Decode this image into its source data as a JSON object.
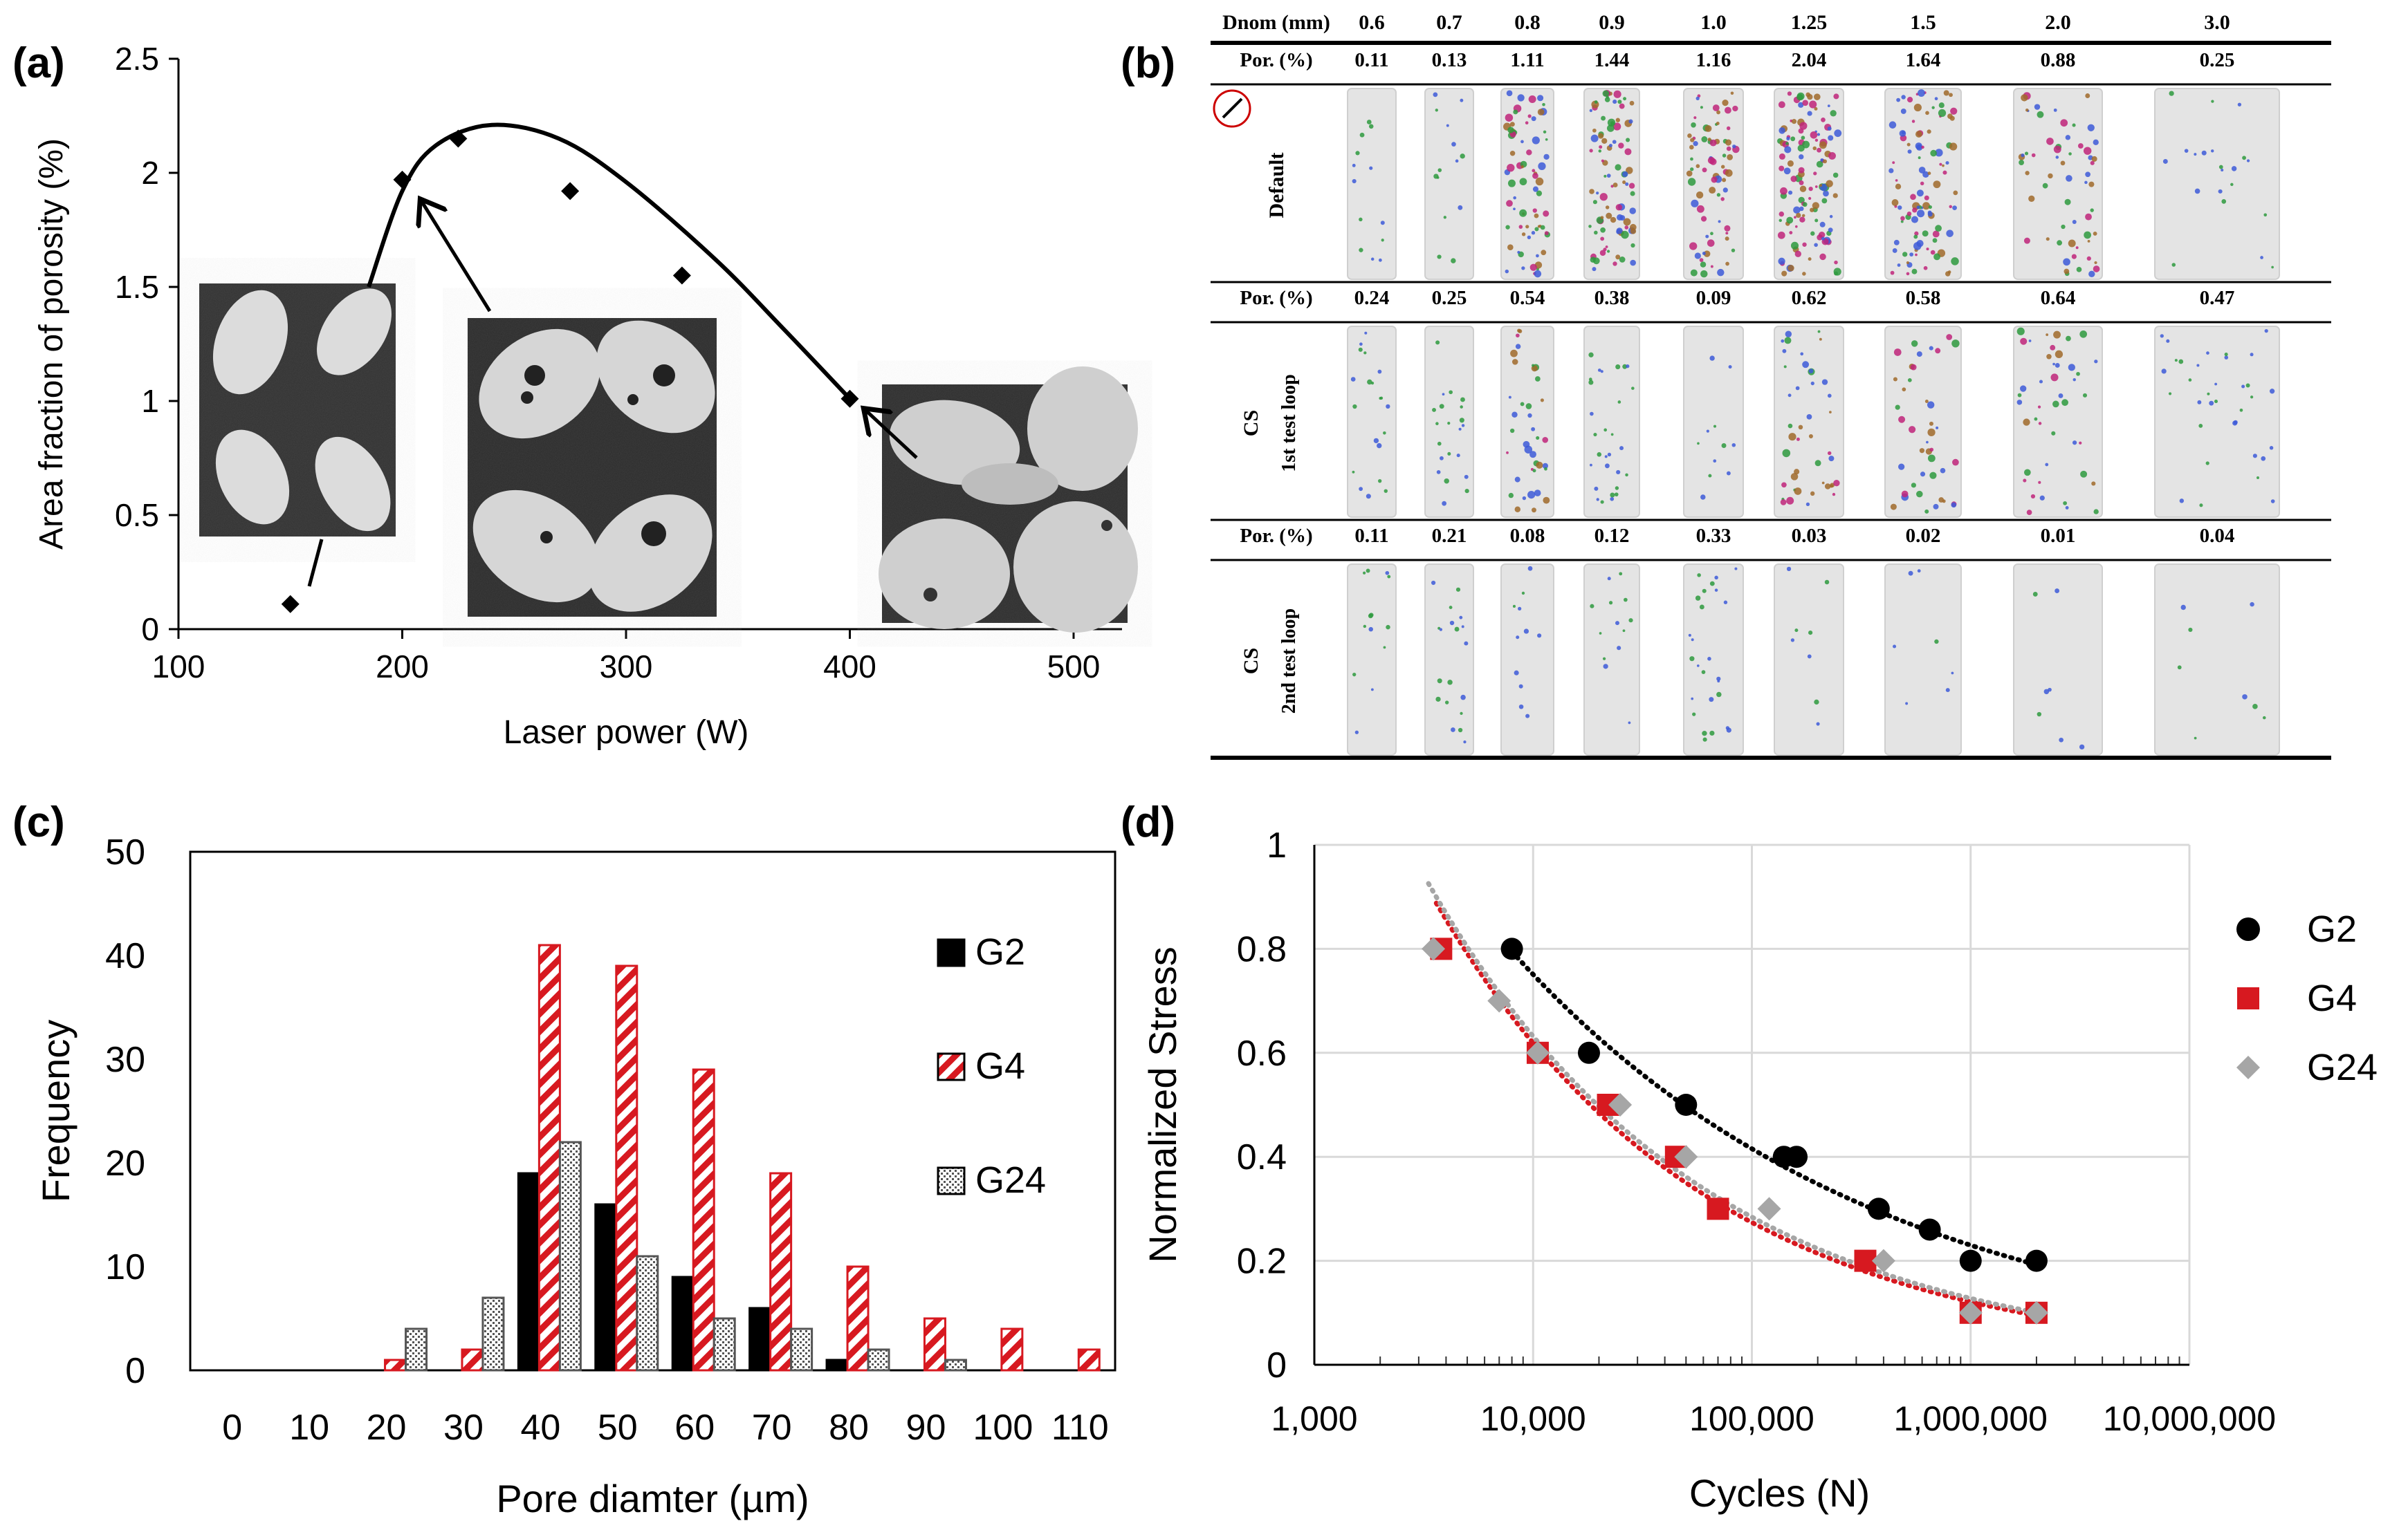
{
  "panels": {
    "a": "(a)",
    "b": "(b)",
    "c": "(c)",
    "d": "(d)"
  },
  "chart_data": [
    {
      "id": "a",
      "type": "scatter",
      "title": "",
      "xlabel": "Laser power (W)",
      "ylabel": "Area fraction of porosity (%)",
      "xlim": [
        100,
        520
      ],
      "ylim": [
        0,
        2.5
      ],
      "xticks": [
        "100",
        "200",
        "300",
        "400",
        "500"
      ],
      "yticks": [
        "0",
        "0.5",
        "1",
        "1.5",
        "2",
        "2.5"
      ],
      "x": [
        150,
        200,
        225,
        275,
        325,
        400
      ],
      "y": [
        0.11,
        1.97,
        2.15,
        1.92,
        1.55,
        1.01
      ],
      "trend_x": [
        185,
        200,
        215,
        240,
        270,
        300,
        340,
        370,
        400
      ],
      "trend_y": [
        1.5,
        1.92,
        2.12,
        2.21,
        2.15,
        1.96,
        1.62,
        1.32,
        1.01
      ],
      "insets": [
        "micrograph-low-power",
        "micrograph-mid-power",
        "micrograph-high-power"
      ]
    },
    {
      "id": "b",
      "type": "table",
      "header_label": "Dnom (mm)",
      "columns": [
        "0.6",
        "0.7",
        "0.8",
        "0.9",
        "1.0",
        "1.25",
        "1.5",
        "2.0",
        "3.0"
      ],
      "por_label": "Por. (%)",
      "rows": [
        {
          "label": "Default",
          "por": [
            "0.11",
            "0.13",
            "1.11",
            "1.44",
            "1.16",
            "2.04",
            "1.64",
            "0.88",
            "0.25"
          ]
        },
        {
          "label": "CS",
          "sublabel": "1st test loop",
          "por": [
            "0.24",
            "0.25",
            "0.54",
            "0.38",
            "0.09",
            "0.62",
            "0.58",
            "0.64",
            "0.47"
          ]
        },
        {
          "label": "CS",
          "sublabel": "2nd test loop",
          "por": [
            "0.11",
            "0.21",
            "0.08",
            "0.12",
            "0.33",
            "0.03",
            "0.02",
            "0.01",
            "0.04"
          ]
        }
      ]
    },
    {
      "id": "c",
      "type": "bar",
      "xlabel": "Pore diamter (µm)",
      "ylabel": "Frequency",
      "ylim": [
        0,
        50
      ],
      "yticks": [
        "0",
        "10",
        "20",
        "30",
        "40",
        "50"
      ],
      "categories": [
        "0",
        "10",
        "20",
        "30",
        "40",
        "50",
        "60",
        "70",
        "80",
        "90",
        "100",
        "110"
      ],
      "series": [
        {
          "name": "G2",
          "values": [
            0,
            0,
            0,
            0,
            19,
            16,
            9,
            6,
            1,
            0,
            0,
            0
          ]
        },
        {
          "name": "G4",
          "values": [
            0,
            0,
            1,
            2,
            41,
            39,
            29,
            19,
            10,
            5,
            4,
            2
          ]
        },
        {
          "name": "G24",
          "values": [
            0,
            0,
            4,
            7,
            22,
            11,
            5,
            4,
            2,
            1,
            0,
            0
          ]
        }
      ]
    },
    {
      "id": "d",
      "type": "scatter",
      "xlabel": "Cycles (N)",
      "ylabel": "Normalized Stress",
      "xscale": "log",
      "xlim": [
        1000,
        10000000
      ],
      "ylim": [
        0,
        1
      ],
      "xticks": [
        "1,000",
        "10,000",
        "100,000",
        "1,000,000",
        "10,000,000"
      ],
      "yticks": [
        "0",
        "0.2",
        "0.4",
        "0.6",
        "0.8",
        "1"
      ],
      "series": [
        {
          "name": "G2",
          "color": "#000000",
          "x": [
            8000,
            18000,
            50000,
            140000,
            160000,
            380000,
            650000,
            1000000,
            2000000
          ],
          "y": [
            0.8,
            0.6,
            0.5,
            0.4,
            0.4,
            0.3,
            0.26,
            0.2,
            0.2
          ]
        },
        {
          "name": "G4",
          "color": "#d71920",
          "x": [
            3800,
            10500,
            22000,
            45000,
            70000,
            330000,
            1000000,
            2000000
          ],
          "y": [
            0.8,
            0.6,
            0.5,
            0.4,
            0.3,
            0.2,
            0.1,
            0.1
          ]
        },
        {
          "name": "G24",
          "color": "#a6a6a6",
          "x": [
            3500,
            7000,
            10500,
            25000,
            50000,
            120000,
            400000,
            1000000,
            2000000
          ],
          "y": [
            0.8,
            0.7,
            0.6,
            0.5,
            0.4,
            0.3,
            0.2,
            0.1,
            0.1
          ]
        }
      ]
    }
  ]
}
